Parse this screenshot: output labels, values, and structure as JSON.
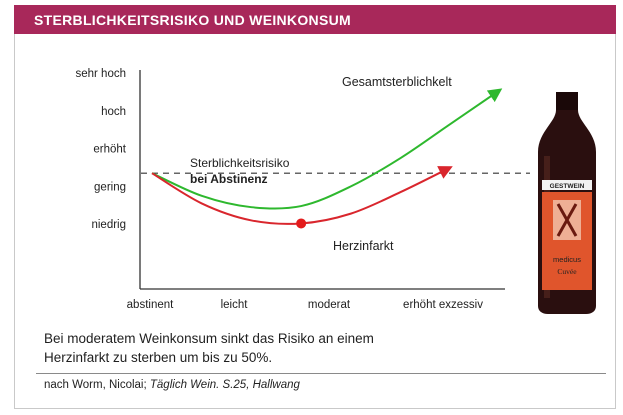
{
  "title": "STERBLICHKEITSRISIKO UND WEINKONSUM",
  "colors": {
    "header": "#a8285a",
    "gesamt_line": "#2eb82e",
    "herz_line": "#d9262d",
    "reference_line": "#333333"
  },
  "chart_data": {
    "type": "line",
    "title": "",
    "xlabel": "",
    "ylabel": "",
    "categories": [
      "abstinent",
      "leicht",
      "moderat",
      "erhöht exzessiv"
    ],
    "y_levels": [
      "niedrig",
      "gering",
      "erhöht",
      "hoch",
      "sehr hoch"
    ],
    "x_range": [
      0,
      3.5
    ],
    "y_range": [
      0,
      5
    ],
    "grid": false,
    "reference_line": {
      "y": 2.35,
      "label_line1": "Sterblichkeitsrisiko",
      "label_line2": "bei Abstinenz",
      "style": "dashed"
    },
    "series": [
      {
        "name": "Gesamtsterblichkelt",
        "color": "#2eb82e",
        "x": [
          0,
          0.5,
          1.0,
          1.5,
          2.0,
          2.5,
          3.0,
          3.5
        ],
        "y": [
          2.35,
          1.75,
          1.45,
          1.48,
          2.0,
          2.75,
          3.65,
          4.55
        ]
      },
      {
        "name": "Herzinfarkt",
        "color": "#d9262d",
        "x": [
          0,
          0.5,
          1.0,
          1.5,
          2.0,
          2.5,
          3.0
        ],
        "y": [
          2.35,
          1.55,
          1.1,
          1.02,
          1.28,
          1.85,
          2.5
        ]
      }
    ],
    "marker": {
      "x": 1.5,
      "y": 1.02,
      "label": "Herzinfarkt",
      "color": "#e31b1b"
    }
  },
  "bottle": {
    "brand": "GESTWEIN",
    "label": "medicus",
    "sublabel": "Cuvée"
  },
  "caption": {
    "line1": "Bei moderatem Weinkonsum sinkt das Risiko an einem",
    "line2": "Herzinfarkt zu sterben um bis zu 50%."
  },
  "source": {
    "prefix": "nach Worm, Nicolai; ",
    "italic": "Täglich Wein. S.25, Hallwang"
  }
}
